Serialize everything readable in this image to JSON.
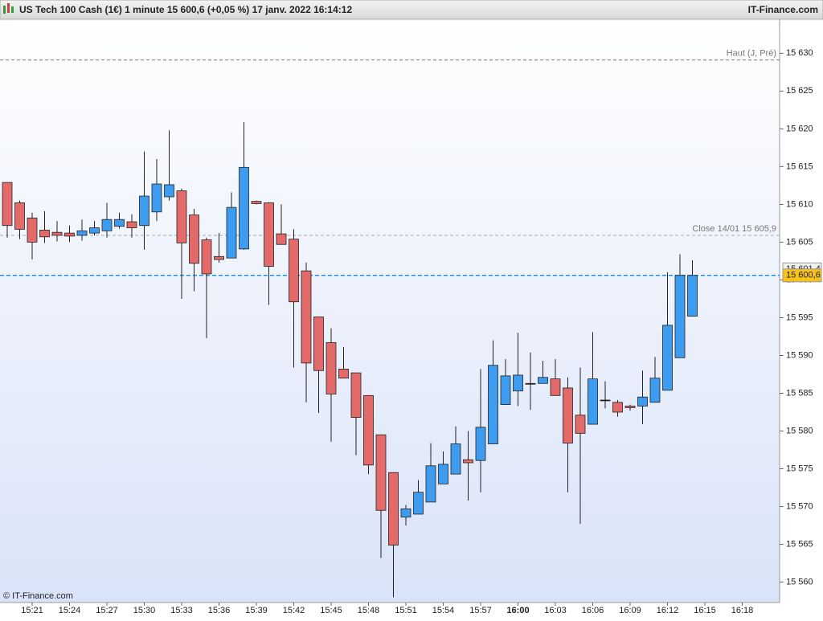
{
  "chart_data": {
    "type": "candlestick",
    "title": "US Tech 100 Cash (1€) 1 minute 15 600,6 (+0,05 %) 17 janv. 2022 16:14:12",
    "brand": "IT-Finance.com",
    "footer": "© IT-Finance.com",
    "bull_color": "#3d9bf0",
    "bear_color": "#e46a6a",
    "open": [
      15612.9,
      15610.2,
      15608.2,
      15606.6,
      15606.3,
      15606.2,
      15605.9,
      15606.2,
      15606.5,
      15607.1,
      15607.7,
      15607.2,
      15609.0,
      15611.0,
      15611.8,
      15608.6,
      15605.3,
      15603.1,
      15602.9,
      15604.1,
      15610.4,
      15610.2,
      15606.1,
      15605.4,
      15601.2,
      15595.1,
      15591.7,
      15588.2,
      15587.7,
      15584.7,
      15579.5,
      15574.5,
      15568.6,
      15569.0,
      15570.6,
      15573.0,
      15574.3,
      15576.2,
      15576.1,
      15578.3,
      15583.5,
      15585.3,
      15586.3,
      15586.3,
      15586.9,
      15585.7,
      15582.1,
      15580.9,
      15584.1,
      15583.8,
      15583.3,
      15583.3,
      15583.8,
      15585.4,
      15589.7,
      15595.2
    ],
    "high": [
      15612.9,
      15610.5,
      15608.9,
      15609.1,
      15607.8,
      15607.2,
      15608.0,
      15607.8,
      15610.2,
      15608.9,
      15608.7,
      15617.0,
      15616.0,
      15619.8,
      15612.1,
      15609.4,
      15605.6,
      15606.2,
      15611.6,
      15620.9,
      15610.5,
      15610.3,
      15610.0,
      15606.7,
      15602.3,
      15595.1,
      15593.6,
      15591.1,
      15587.7,
      15584.7,
      15579.5,
      15574.5,
      15570.2,
      15573.5,
      15578.4,
      15577.3,
      15580.6,
      15580.0,
      15588.2,
      15592.0,
      15589.5,
      15593.0,
      15590.4,
      15589.3,
      15589.5,
      15587.1,
      15588.4,
      15593.1,
      15586.6,
      15584.1,
      15583.5,
      15588.0,
      15589.8,
      15601.0,
      15603.4,
      15602.6
    ],
    "low": [
      15605.6,
      15605.4,
      15602.7,
      15604.9,
      15605.1,
      15605.0,
      15605.2,
      15605.9,
      15605.6,
      15606.8,
      15605.6,
      15604.0,
      15607.8,
      15610.5,
      15597.5,
      15598.5,
      15592.3,
      15602.3,
      15602.9,
      15604.0,
      15610.0,
      15596.7,
      15604.7,
      15588.4,
      15583.8,
      15582.4,
      15578.6,
      15587.0,
      15576.8,
      15574.3,
      15563.2,
      15558.0,
      15567.5,
      15569.0,
      15570.6,
      15573.0,
      15574.3,
      15570.8,
      15571.9,
      15578.3,
      15583.5,
      15583.3,
      15582.8,
      15586.3,
      15584.7,
      15571.9,
      15567.7,
      15580.9,
      15583.0,
      15581.9,
      15582.7,
      15580.9,
      15583.8,
      15585.4,
      15589.7,
      15595.2
    ],
    "close": [
      15607.2,
      15606.7,
      15605.0,
      15605.7,
      15605.9,
      15605.8,
      15606.5,
      15606.9,
      15608.0,
      15608.0,
      15606.9,
      15611.1,
      15612.7,
      15612.6,
      15604.9,
      15602.2,
      15600.8,
      15602.7,
      15609.6,
      15614.9,
      15610.1,
      15601.8,
      15604.7,
      15597.1,
      15589.0,
      15588.0,
      15584.9,
      15587.0,
      15581.8,
      15575.5,
      15569.5,
      15564.9,
      15569.7,
      15571.9,
      15575.4,
      15575.6,
      15578.3,
      15575.8,
      15580.5,
      15588.7,
      15587.3,
      15587.4,
      15586.3,
      15587.1,
      15584.7,
      15578.4,
      15579.7,
      15586.9,
      15584.1,
      15582.5,
      15583.1,
      15584.5,
      15587.0,
      15594.0,
      15600.6,
      15600.6
    ],
    "xticks": [
      "15:21",
      "15:24",
      "15:27",
      "15:30",
      "15:33",
      "15:36",
      "15:39",
      "15:42",
      "15:45",
      "15:48",
      "15:51",
      "15:54",
      "15:57",
      "16:00",
      "16:03",
      "16:06",
      "16:09",
      "16:12",
      "16:15",
      "16:18"
    ],
    "ylim": [
      15557.3,
      15634.5
    ],
    "yticks": [
      {
        "value": 15560,
        "label": "15 560"
      },
      {
        "value": 15565,
        "label": "15 565"
      },
      {
        "value": 15570,
        "label": "15 570"
      },
      {
        "value": 15575,
        "label": "15 575"
      },
      {
        "value": 15580,
        "label": "15 580"
      },
      {
        "value": 15585,
        "label": "15 585"
      },
      {
        "value": 15590,
        "label": "15 590"
      },
      {
        "value": 15595,
        "label": "15 595"
      },
      {
        "value": 15600,
        "label": "15 600"
      },
      {
        "value": 15605,
        "label": "15 605"
      },
      {
        "value": 15610,
        "label": "15 610"
      },
      {
        "value": 15615,
        "label": "15 615"
      },
      {
        "value": 15620,
        "label": "15 620"
      },
      {
        "value": 15625,
        "label": "15 625"
      },
      {
        "value": 15630,
        "label": "15 630"
      }
    ],
    "ref_lines": [
      {
        "label": "Haut (J, Pré)",
        "value": 15629.1
      },
      {
        "label": "Close 14/01 15 605,9",
        "value": 15605.9
      }
    ],
    "price_tags": [
      {
        "label": "15 601,4",
        "value": 15601.4
      },
      {
        "label": "15 600,6",
        "value": 15600.6
      }
    ]
  }
}
